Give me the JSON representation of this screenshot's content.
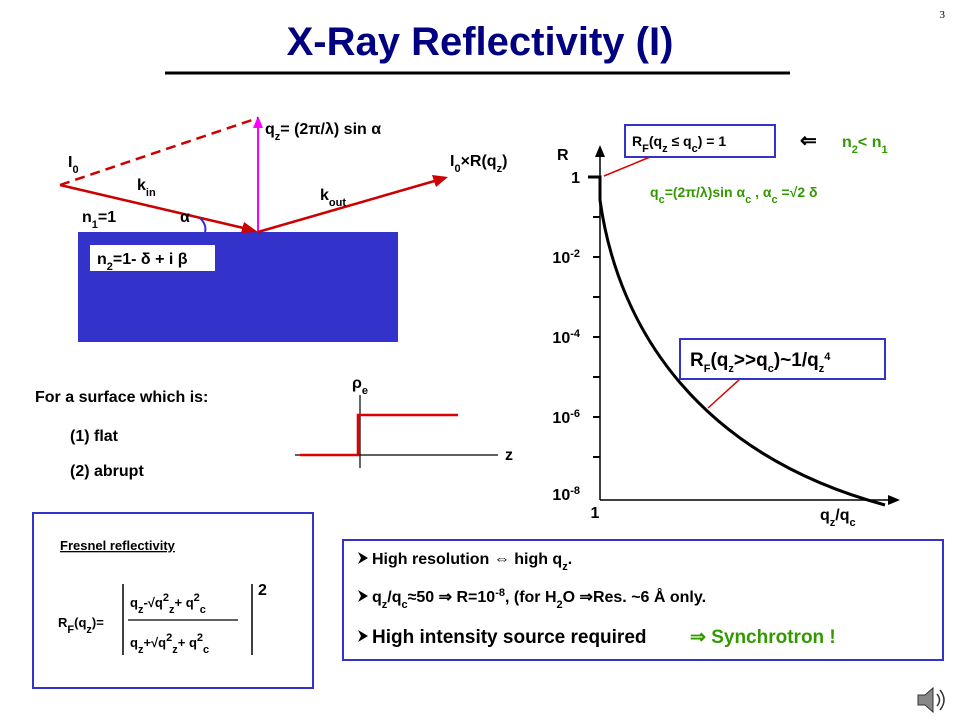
{
  "page_number": "3",
  "title": "X-Ray Reflectivity (I)",
  "geometry": {
    "incident": [
      "I",
      {
        "sub": "0"
      }
    ],
    "k_in": [
      "k",
      {
        "sub": "in"
      }
    ],
    "q_z": [
      "q",
      {
        "sub": "z"
      },
      "= (2π/λ) sin α"
    ],
    "reflected": [
      "I",
      {
        "sub": "0"
      },
      "×R(q",
      {
        "sub": "z"
      },
      ")"
    ],
    "k_out": [
      "k",
      {
        "sub": "out"
      }
    ],
    "n1": [
      "n",
      {
        "sub": "1"
      },
      "=1"
    ],
    "angle": "α",
    "n2": [
      "n",
      {
        "sub": "2"
      },
      "=1- δ + i β"
    ]
  },
  "surface": {
    "heading": "For a surface which is:",
    "items": [
      "(1) flat",
      "(2) abrupt"
    ],
    "y_label": [
      "ρ",
      {
        "sub": "e"
      }
    ],
    "x_label": "z"
  },
  "fresnel": {
    "heading": "Fresnel reflectivity",
    "lhs": [
      "R",
      {
        "sub": "F"
      },
      "(q",
      {
        "sub": "z"
      },
      ")="
    ],
    "numerator": [
      "q",
      {
        "sub": "z"
      },
      "-√q",
      {
        "sup": "2"
      },
      {
        "sub": "z"
      },
      "+ q",
      {
        "sup": "2"
      },
      {
        "sub": "c"
      }
    ],
    "denominator": [
      "q",
      {
        "sub": "z"
      },
      "+√q",
      {
        "sup": "2"
      },
      {
        "sub": "z"
      },
      "+ q",
      {
        "sup": "2"
      },
      {
        "sub": "c"
      }
    ],
    "exponent": "2"
  },
  "reflectivity": {
    "y_label": "R",
    "y_ticks": [
      "1",
      [
        "10",
        {
          "sup": "-2"
        }
      ],
      [
        "10",
        {
          "sup": "-4"
        }
      ],
      [
        "10",
        {
          "sup": "-6"
        }
      ],
      [
        "10",
        {
          "sup": "-8"
        }
      ]
    ],
    "x_ticks": [
      "1",
      [
        "q",
        {
          "sub": "z"
        },
        "/q",
        {
          "sub": "c"
        }
      ]
    ],
    "plateau": [
      "R",
      {
        "sub": "F"
      },
      "(q",
      {
        "sub": "z"
      },
      " ≤ q",
      {
        "sub": "c"
      },
      ") = 1"
    ],
    "arrow": "⇐",
    "condition": [
      "n",
      {
        "sub": "2"
      },
      "< n",
      {
        "sub": "1"
      }
    ],
    "critical": [
      "q",
      {
        "sub": "c"
      },
      "=(2π/λ)sin α",
      {
        "sub": "c"
      },
      " , α",
      {
        "sub": "c"
      },
      " =√2 δ"
    ],
    "asymptote": [
      "R",
      {
        "sub": "F"
      },
      "(q",
      {
        "sub": "z"
      },
      ">>q",
      {
        "sub": "c"
      },
      ")~1/q",
      {
        "sub": "z"
      },
      {
        "sup": "4"
      }
    ]
  },
  "notes": [
    [
      "High resolution ⇔ high q",
      {
        "sub": "z"
      },
      "."
    ],
    [
      "q",
      {
        "sub": "z"
      },
      "/q",
      {
        "sub": "c"
      },
      "≈50  ⇒  R=10",
      {
        "sup": "-8"
      },
      ", (for H",
      {
        "sub": "2"
      },
      "O ⇒Res. ~6 Å only."
    ],
    "High intensity source required",
    "⇒ Synchrotron !"
  ]
}
